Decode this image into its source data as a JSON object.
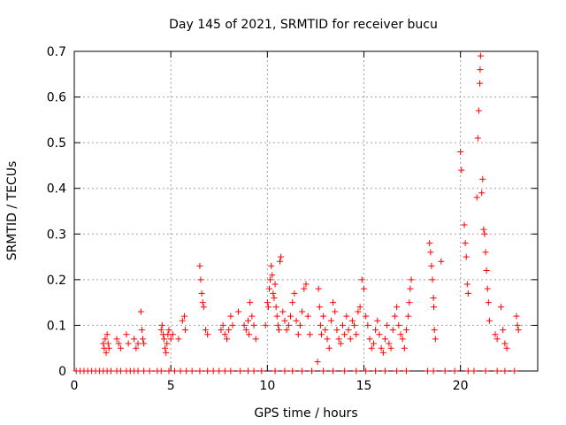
{
  "chart_data": {
    "type": "scatter",
    "title": "Day 145 of 2021, SRMTID for receiver bucu",
    "xlabel": "GPS time / hours",
    "ylabel": "SRMTID / TECUs",
    "xlim": [
      0,
      24
    ],
    "ylim": [
      0,
      0.7
    ],
    "xticks": [
      0,
      5,
      10,
      15,
      20
    ],
    "yticks": [
      0,
      0.1,
      0.2,
      0.3,
      0.4,
      0.5,
      0.6,
      0.7
    ],
    "xtick_labels": [
      "0",
      "5",
      "10",
      "15",
      "20"
    ],
    "ytick_labels": [
      "0",
      "0.1",
      "0.2",
      "0.3",
      "0.4",
      "0.5",
      "0.6",
      "0.7"
    ],
    "grid": true,
    "marker": "+",
    "series": [
      {
        "name": "SRMTID",
        "color": "#ff0000",
        "x": [
          0.1,
          0.3,
          0.5,
          0.7,
          0.9,
          1.1,
          1.3,
          1.5,
          1.7,
          1.9,
          2.2,
          2.4,
          2.7,
          2.9,
          3.1,
          3.3,
          3.6,
          3.9,
          4.3,
          4.5,
          4.9,
          5.2,
          5.5,
          5.8,
          6.1,
          6.5,
          6.9,
          7.2,
          7.5,
          7.8,
          8.1,
          8.6,
          9.0,
          9.3,
          9.7,
          10.4,
          10.9,
          11.3,
          11.8,
          12.3,
          12.9,
          13.4,
          14.0,
          14.6,
          15.1,
          15.6,
          16.1,
          16.7,
          17.2,
          18.3,
          18.6,
          19.2,
          19.7,
          20.4,
          20.7,
          21.3,
          21.9,
          22.3,
          22.8,
          1.5,
          1.55,
          1.6,
          1.65,
          1.7,
          1.75,
          1.8,
          2.2,
          2.3,
          2.4,
          2.7,
          2.8,
          3.1,
          3.2,
          3.3,
          3.45,
          3.5,
          3.55,
          3.6,
          4.5,
          4.55,
          4.6,
          4.65,
          4.7,
          4.75,
          4.8,
          4.85,
          4.9,
          5.0,
          5.1,
          5.4,
          5.6,
          5.7,
          5.75,
          6.5,
          6.55,
          6.6,
          6.65,
          6.7,
          6.8,
          6.9,
          7.6,
          7.7,
          7.8,
          7.9,
          8.0,
          8.1,
          8.2,
          8.5,
          8.8,
          8.9,
          9.0,
          9.05,
          9.1,
          9.2,
          9.3,
          9.4,
          9.9,
          10.0,
          10.05,
          10.1,
          10.15,
          10.2,
          10.25,
          10.3,
          10.35,
          10.4,
          10.45,
          10.5,
          10.55,
          10.6,
          10.65,
          10.7,
          10.8,
          10.9,
          11.0,
          11.1,
          11.2,
          11.3,
          11.4,
          11.5,
          11.6,
          11.7,
          11.8,
          11.9,
          12.0,
          12.1,
          12.2,
          12.6,
          12.65,
          12.7,
          12.75,
          12.8,
          12.9,
          13.0,
          13.1,
          13.2,
          13.3,
          13.4,
          13.5,
          13.6,
          13.7,
          13.8,
          13.9,
          14.0,
          14.1,
          14.2,
          14.3,
          14.4,
          14.5,
          14.6,
          14.7,
          14.8,
          14.9,
          15.0,
          15.1,
          15.2,
          15.3,
          15.4,
          15.5,
          15.6,
          15.7,
          15.8,
          15.9,
          16.0,
          16.1,
          16.2,
          16.3,
          16.4,
          16.5,
          16.6,
          16.7,
          16.8,
          16.9,
          17.0,
          17.1,
          17.2,
          17.3,
          17.35,
          17.4,
          17.45,
          18.4,
          18.45,
          18.5,
          18.55,
          18.6,
          18.62,
          18.65,
          18.7,
          19.0,
          20.0,
          20.05,
          20.2,
          20.25,
          20.3,
          20.35,
          20.4,
          20.85,
          20.9,
          20.95,
          21.0,
          21.02,
          21.05,
          21.1,
          21.15,
          21.2,
          21.25,
          21.3,
          21.35,
          21.4,
          21.45,
          21.5,
          21.8,
          21.9,
          22.1,
          22.2,
          22.3,
          22.4,
          22.9,
          22.95,
          23.0
        ],
        "y": [
          0,
          0,
          0,
          0,
          0,
          0,
          0,
          0,
          0,
          0,
          0,
          0,
          0,
          0,
          0,
          0,
          0,
          0,
          0,
          0,
          0,
          0,
          0,
          0,
          0,
          0,
          0,
          0,
          0,
          0,
          0,
          0,
          0,
          0,
          0,
          0,
          0,
          0,
          0,
          0,
          0,
          0,
          0,
          0,
          0,
          0,
          0,
          0,
          0,
          0,
          0,
          0,
          0,
          0,
          0,
          0,
          0,
          0,
          0,
          0.06,
          0.05,
          0.07,
          0.04,
          0.08,
          0.06,
          0.05,
          0.07,
          0.06,
          0.05,
          0.08,
          0.06,
          0.07,
          0.05,
          0.06,
          0.13,
          0.09,
          0.07,
          0.06,
          0.09,
          0.1,
          0.08,
          0.07,
          0.05,
          0.04,
          0.06,
          0.08,
          0.09,
          0.07,
          0.08,
          0.07,
          0.11,
          0.12,
          0.09,
          0.23,
          0.2,
          0.17,
          0.15,
          0.14,
          0.09,
          0.08,
          0.09,
          0.1,
          0.08,
          0.07,
          0.09,
          0.12,
          0.1,
          0.13,
          0.1,
          0.09,
          0.11,
          0.08,
          0.15,
          0.12,
          0.1,
          0.07,
          0.1,
          0.15,
          0.14,
          0.18,
          0.2,
          0.23,
          0.21,
          0.17,
          0.16,
          0.19,
          0.14,
          0.12,
          0.1,
          0.09,
          0.24,
          0.25,
          0.13,
          0.11,
          0.09,
          0.1,
          0.12,
          0.15,
          0.17,
          0.11,
          0.08,
          0.1,
          0.13,
          0.18,
          0.19,
          0.12,
          0.08,
          0.02,
          0.18,
          0.14,
          0.1,
          0.08,
          0.12,
          0.09,
          0.07,
          0.05,
          0.11,
          0.15,
          0.13,
          0.09,
          0.07,
          0.06,
          0.1,
          0.08,
          0.12,
          0.09,
          0.07,
          0.11,
          0.1,
          0.08,
          0.13,
          0.14,
          0.2,
          0.18,
          0.12,
          0.1,
          0.07,
          0.05,
          0.06,
          0.09,
          0.11,
          0.08,
          0.05,
          0.04,
          0.07,
          0.1,
          0.06,
          0.05,
          0.09,
          0.12,
          0.14,
          0.1,
          0.08,
          0.07,
          0.05,
          0.09,
          0.12,
          0.15,
          0.18,
          0.2,
          0.28,
          0.26,
          0.23,
          0.2,
          0.16,
          0.14,
          0.09,
          0.07,
          0.24,
          0.48,
          0.44,
          0.32,
          0.28,
          0.25,
          0.19,
          0.17,
          0.38,
          0.51,
          0.57,
          0.63,
          0.66,
          0.69,
          0.39,
          0.42,
          0.31,
          0.3,
          0.26,
          0.22,
          0.18,
          0.15,
          0.11,
          0.08,
          0.07,
          0.14,
          0.09,
          0.06,
          0.05,
          0.12,
          0.1,
          0.09
        ]
      }
    ]
  }
}
